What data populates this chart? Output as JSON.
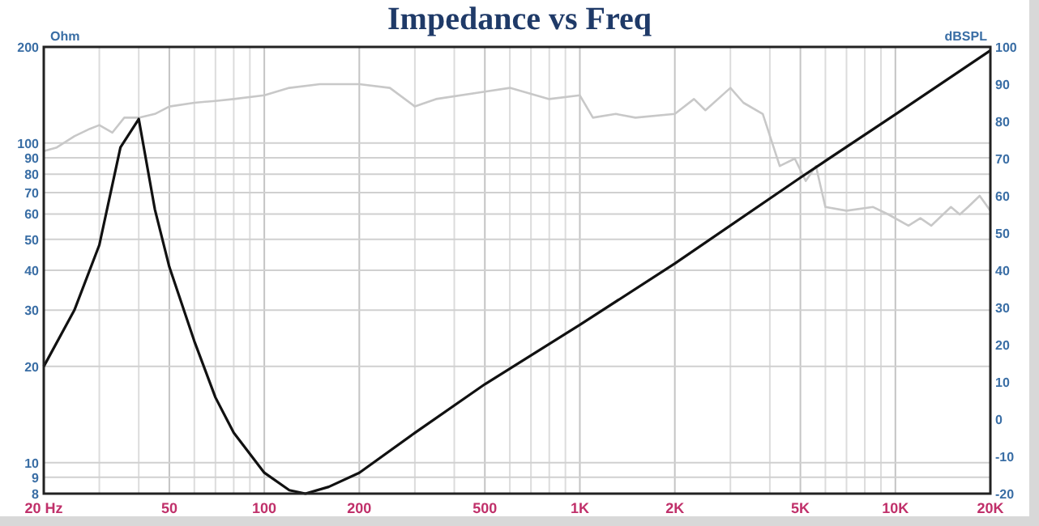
{
  "chart_data": {
    "type": "line",
    "title": "Impedance vs Freq",
    "ylabel": "Ohm",
    "y2label": "dBSPL",
    "log": "xy",
    "grid": true,
    "xlim": [
      20,
      20000
    ],
    "ylim": [
      8,
      200
    ],
    "y2lim": [
      -20,
      100
    ],
    "xticks": [
      {
        "value": 20,
        "label": "20 Hz"
      },
      {
        "value": 30,
        "label": null
      },
      {
        "value": 40,
        "label": null
      },
      50,
      {
        "value": 60,
        "label": null
      },
      {
        "value": 70,
        "label": null
      },
      {
        "value": 80,
        "label": null
      },
      {
        "value": 90,
        "label": null
      },
      100,
      200,
      {
        "value": 300,
        "label": null
      },
      {
        "value": 400,
        "label": null
      },
      500,
      {
        "value": 600,
        "label": null
      },
      {
        "value": 700,
        "label": null
      },
      {
        "value": 800,
        "label": null
      },
      {
        "value": 900,
        "label": null
      },
      {
        "value": 1000,
        "label": "1K"
      },
      {
        "value": 2000,
        "label": "2K"
      },
      {
        "value": 3000,
        "label": null
      },
      {
        "value": 4000,
        "label": null
      },
      {
        "value": 5000,
        "label": "5K"
      },
      {
        "value": 6000,
        "label": null
      },
      {
        "value": 7000,
        "label": null
      },
      {
        "value": 8000,
        "label": null
      },
      {
        "value": 9000,
        "label": null
      },
      {
        "value": 10000,
        "label": "10K"
      },
      {
        "value": 20000,
        "label": "20K"
      }
    ],
    "yticks": [
      8,
      9,
      10,
      20,
      30,
      40,
      50,
      60,
      70,
      80,
      90,
      100,
      200
    ],
    "y2ticks": [
      -20,
      -10,
      0,
      10,
      20,
      30,
      40,
      50,
      60,
      70,
      80,
      90,
      100
    ],
    "series": [
      {
        "color": "#c8c8c8",
        "axis": "y2",
        "x": [
          20,
          22,
          25,
          28,
          30,
          33,
          36,
          40,
          45,
          50,
          60,
          70,
          80,
          100,
          120,
          150,
          200,
          250,
          300,
          350,
          500,
          600,
          800,
          1000,
          1100,
          1300,
          1500,
          2000,
          2300,
          2500,
          3000,
          3300,
          3800,
          4300,
          4800,
          5200,
          5600,
          6000,
          7000,
          8500,
          9500,
          11000,
          12000,
          13000,
          15000,
          16000,
          17000,
          18500,
          20000
        ],
        "values": [
          72,
          73,
          76,
          78,
          79,
          77,
          81,
          81,
          82,
          84,
          85,
          85.5,
          86,
          87,
          89,
          90,
          90,
          89,
          84,
          86,
          88,
          89,
          86,
          87,
          81,
          82,
          81,
          82,
          86,
          83,
          89,
          85,
          82,
          68,
          70,
          64,
          68,
          57,
          56,
          57,
          55,
          52,
          54,
          52,
          57,
          55,
          57,
          60,
          56
        ]
      },
      {
        "color": "#111111",
        "x": [
          20,
          25,
          30,
          35,
          40,
          45,
          50,
          60,
          70,
          80,
          100,
          120,
          135,
          160,
          200,
          300,
          500,
          1000,
          2000,
          5000,
          10000,
          20000
        ],
        "values": [
          20,
          30,
          48,
          97,
          119,
          62,
          41,
          24,
          16,
          12.4,
          9.3,
          8.2,
          8,
          8.4,
          9.3,
          12.4,
          17.6,
          27,
          42,
          78,
          123,
          195
        ]
      }
    ]
  }
}
